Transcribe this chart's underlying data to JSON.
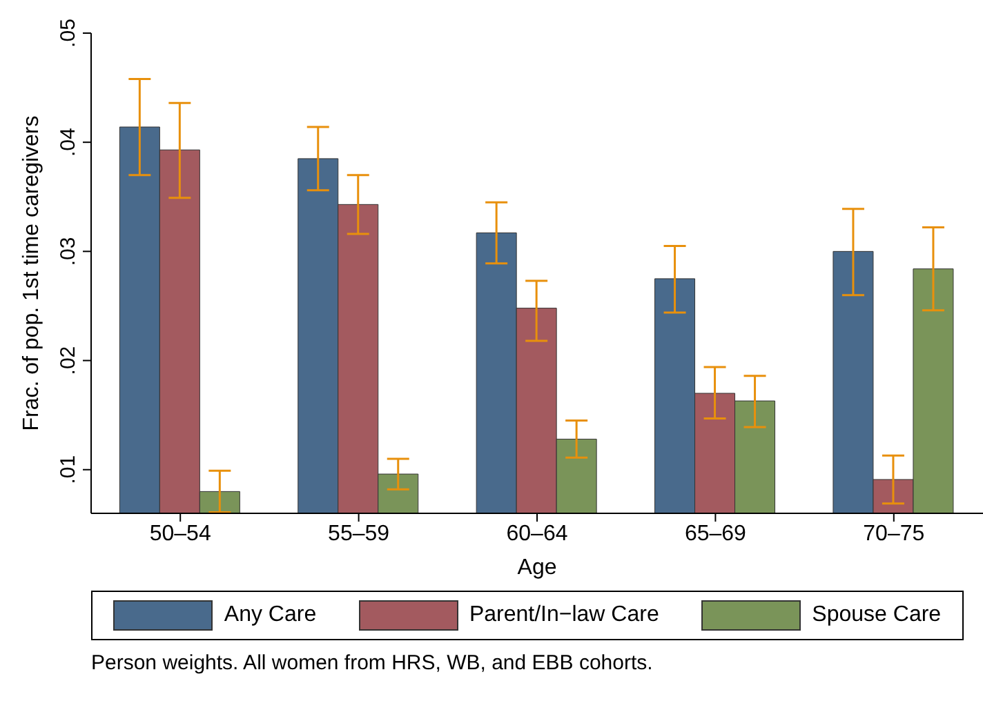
{
  "chart_data": {
    "type": "bar",
    "categories": [
      "50–54",
      "55–59",
      "60–64",
      "65–69",
      "70–75"
    ],
    "series": [
      {
        "name": "Any Care",
        "color": "#496a8c",
        "values": [
          0.0414,
          0.0385,
          0.0317,
          0.0275,
          0.03
        ],
        "errors": [
          [
            0.037,
            0.0458
          ],
          [
            0.0356,
            0.0414
          ],
          [
            0.0289,
            0.0345
          ],
          [
            0.0244,
            0.0305
          ],
          [
            0.026,
            0.0339
          ]
        ]
      },
      {
        "name": "Parent/In−law Care",
        "color": "#a35a5f",
        "values": [
          0.0393,
          0.0343,
          0.0248,
          0.017,
          0.0091
        ],
        "errors": [
          [
            0.0349,
            0.0436
          ],
          [
            0.0316,
            0.037
          ],
          [
            0.0218,
            0.0273
          ],
          [
            0.0147,
            0.0194
          ],
          [
            0.0069,
            0.0113
          ]
        ]
      },
      {
        "name": "Spouse Care",
        "color": "#7a9459",
        "values": [
          0.008,
          0.0096,
          0.0128,
          0.0163,
          0.0284
        ],
        "errors": [
          [
            0.0061,
            0.0099
          ],
          [
            0.0082,
            0.011
          ],
          [
            0.0111,
            0.0145
          ],
          [
            0.0139,
            0.0186
          ],
          [
            0.0246,
            0.0322
          ]
        ]
      }
    ],
    "xlabel": "Age",
    "ylabel": "Frac. of pop. 1st time caregivers",
    "ylim": [
      0.006,
      0.05
    ],
    "yticks": [
      {
        "value": 0.01,
        "label": ".01"
      },
      {
        "value": 0.02,
        "label": ".02"
      },
      {
        "value": 0.03,
        "label": ".03"
      },
      {
        "value": 0.04,
        "label": ".04"
      },
      {
        "value": 0.05,
        "label": ".05"
      }
    ],
    "grid": false,
    "legend": "bottom",
    "annotations": [
      "Person weights. All women from HRS, WB, and EBB cohorts."
    ]
  }
}
